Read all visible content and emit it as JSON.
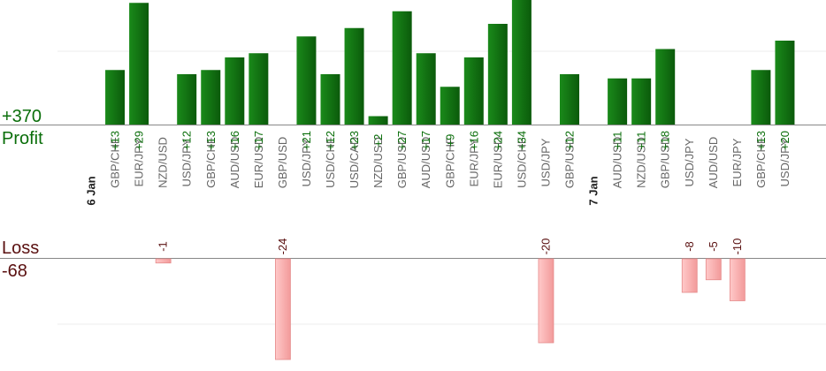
{
  "summary": {
    "profit_total": "+370",
    "profit_label": "Profit",
    "loss_label": "Loss",
    "loss_total": "-68"
  },
  "colors": {
    "profit": "#0a6e0a",
    "profit_bar_dark": "#0b5a0b",
    "profit_bar_light": "#1a8a1a",
    "loss": "#f4a7a7",
    "loss_text": "#5a1010",
    "date_text": "#222222",
    "category_text": "#666666"
  },
  "chart_data": {
    "type": "bar",
    "grid": true,
    "groups": [
      {
        "date": "6 Jan",
        "trades": [
          {
            "pair": "GBP/CHF",
            "value": 13,
            "label": "+13"
          },
          {
            "pair": "EUR/JPY",
            "value": 29,
            "label": "+29"
          },
          {
            "pair": "NZD/USD",
            "value": -1,
            "label": "-1"
          },
          {
            "pair": "USD/JPY",
            "value": 12,
            "label": "+12"
          },
          {
            "pair": "GBP/CHF",
            "value": 13,
            "label": "+13"
          },
          {
            "pair": "AUD/USD",
            "value": 16,
            "label": "+16"
          },
          {
            "pair": "EUR/USD",
            "value": 17,
            "label": "+17"
          },
          {
            "pair": "GBP/USD",
            "value": -24,
            "label": "-24"
          },
          {
            "pair": "USD/JPY",
            "value": 21,
            "label": "+21"
          },
          {
            "pair": "USD/CHF",
            "value": 12,
            "label": "+12"
          },
          {
            "pair": "USD/CAD",
            "value": 23,
            "label": "+23"
          },
          {
            "pair": "NZD/USD",
            "value": 2,
            "label": "+2"
          },
          {
            "pair": "GBP/USD",
            "value": 27,
            "label": "+27"
          },
          {
            "pair": "AUD/USD",
            "value": 17,
            "label": "+17"
          },
          {
            "pair": "GBP/CHF",
            "value": 9,
            "label": "+9"
          },
          {
            "pair": "EUR/JPY",
            "value": 16,
            "label": "+16"
          },
          {
            "pair": "EUR/USD",
            "value": 24,
            "label": "+24"
          },
          {
            "pair": "USD/CHF",
            "value": 34,
            "label": "+34"
          },
          {
            "pair": "USD/JPY",
            "value": -20,
            "label": "-20"
          },
          {
            "pair": "GBP/USD",
            "value": 12,
            "label": "+12"
          }
        ]
      },
      {
        "date": "7 Jan",
        "trades": [
          {
            "pair": "AUD/USD",
            "value": 11,
            "label": "+11"
          },
          {
            "pair": "NZD/USD",
            "value": 11,
            "label": "+11"
          },
          {
            "pair": "GBP/USD",
            "value": 18,
            "label": "+18"
          },
          {
            "pair": "USD/JPY",
            "value": -8,
            "label": "-8"
          },
          {
            "pair": "AUD/USD",
            "value": -5,
            "label": "-5"
          },
          {
            "pair": "EUR/JPY",
            "value": -10,
            "label": "-10"
          },
          {
            "pair": "GBP/CHF",
            "value": 13,
            "label": "+13"
          },
          {
            "pair": "USD/JPY",
            "value": 20,
            "label": "+20"
          }
        ]
      }
    ]
  }
}
